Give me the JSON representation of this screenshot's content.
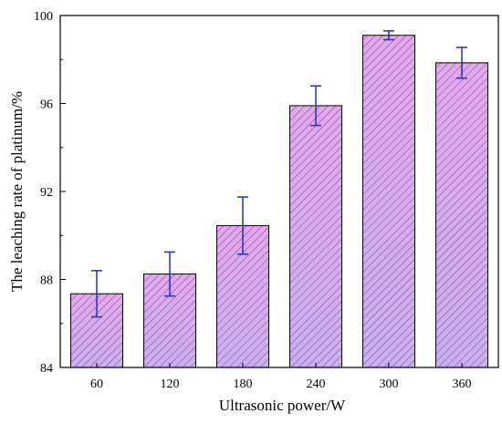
{
  "chart_data": {
    "type": "bar",
    "title": "",
    "xlabel": "Ultrasonic power/W",
    "ylabel": "The leaching rate of platinum/%",
    "categories": [
      "60",
      "120",
      "180",
      "240",
      "300",
      "360"
    ],
    "values": [
      87.35,
      88.25,
      90.45,
      95.9,
      99.1,
      97.85
    ],
    "errors": [
      1.05,
      1.0,
      1.3,
      0.9,
      0.2,
      0.7
    ],
    "ylim": [
      84,
      100
    ],
    "yticks": [
      84,
      88,
      92,
      96,
      100
    ],
    "grid": false,
    "legend": "none",
    "colors": {
      "bar_fill": "#e4a8ee",
      "bar_fill_bottom": "#c8b0ee",
      "hatch": "#7a3f86",
      "error_bar": "#1f2fd0",
      "axis": "#000000"
    }
  }
}
